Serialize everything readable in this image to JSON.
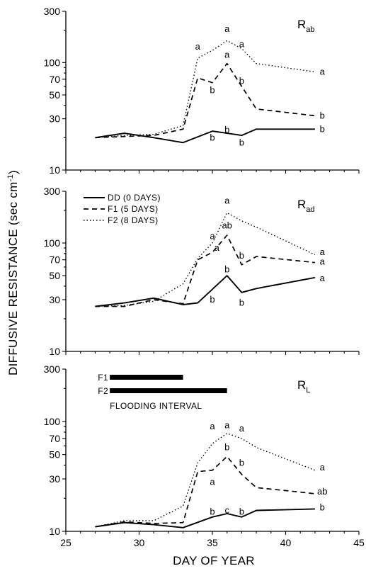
{
  "chart_data": {
    "type": "line",
    "xlabel": "DAY OF YEAR",
    "ylabel": "DIFFUSIVE RESISTANCE (sec cm",
    "ylabel_sup": "-1",
    "ylabel_close": ")",
    "xlim": [
      25,
      45
    ],
    "x_ticks": [
      25,
      30,
      35,
      40,
      45
    ],
    "yscale": "log",
    "ylim": [
      10,
      300
    ],
    "y_ticks": [
      10,
      30,
      50,
      70,
      100,
      300
    ],
    "legend": {
      "panel": 1,
      "placement": "top-left",
      "entries": [
        {
          "style": "solid",
          "label": "DD (0 DAYS)"
        },
        {
          "style": "dashed",
          "label": "F1 (5 DAYS)"
        },
        {
          "style": "dotted",
          "label": "F2 (8 DAYS)"
        }
      ]
    },
    "flooding": {
      "panel": 2,
      "title": "FLOODING INTERVAL",
      "bars": [
        {
          "label": "F1",
          "start": 28,
          "end": 33
        },
        {
          "label": "F2",
          "start": 28,
          "end": 36
        }
      ]
    },
    "panels": [
      {
        "label_main": "R",
        "label_sub": "ab",
        "series": [
          {
            "style": "solid",
            "x": [
              27,
              29,
              31,
              33,
              35,
              37,
              38,
              42
            ],
            "y": [
              20,
              22,
              20,
              18,
              23,
              21,
              24,
              24
            ]
          },
          {
            "style": "dashed",
            "x": [
              27,
              29,
              31,
              33,
              34,
              35,
              36,
              37,
              38,
              42
            ],
            "y": [
              20,
              20.5,
              21,
              24,
              72,
              65,
              98,
              60,
              37,
              32
            ]
          },
          {
            "style": "dotted",
            "x": [
              27,
              29,
              31,
              33,
              34,
              35,
              36,
              37,
              38,
              42
            ],
            "y": [
              20,
              21,
              21.5,
              26,
              110,
              130,
              160,
              135,
              98,
              82
            ]
          }
        ],
        "annotations": [
          {
            "text": "a",
            "x": 34,
            "y": 140
          },
          {
            "text": "a",
            "x": 36,
            "y": 205
          },
          {
            "text": "a",
            "x": 37,
            "y": 148
          },
          {
            "text": "a",
            "x": 36,
            "y": 118
          },
          {
            "text": "a",
            "x": 42.5,
            "y": 82
          },
          {
            "text": "b",
            "x": 35,
            "y": 55
          },
          {
            "text": "b",
            "x": 37,
            "y": 67
          },
          {
            "text": "b",
            "x": 42.5,
            "y": 32
          },
          {
            "text": "b",
            "x": 35,
            "y": 20
          },
          {
            "text": "b",
            "x": 36,
            "y": 23.5
          },
          {
            "text": "b",
            "x": 37,
            "y": 18
          },
          {
            "text": "b",
            "x": 42.5,
            "y": 24
          }
        ]
      },
      {
        "label_main": "R",
        "label_sub": "ad",
        "series": [
          {
            "style": "solid",
            "x": [
              27,
              29,
              31,
              33,
              34,
              36,
              37,
              38,
              42
            ],
            "y": [
              26,
              28,
              31,
              27,
              28,
              50,
              35,
              38,
              48
            ]
          },
          {
            "style": "dashed",
            "x": [
              27,
              29,
              31,
              33,
              34,
              35,
              36,
              37,
              38,
              42
            ],
            "y": [
              26,
              26,
              30,
              27.5,
              70,
              82,
              118,
              63,
              75,
              66
            ]
          },
          {
            "style": "dotted",
            "x": [
              27,
              29,
              31,
              33,
              34,
              35,
              36,
              37,
              38,
              42
            ],
            "y": [
              26,
              26.5,
              29,
              42,
              72,
              100,
              190,
              160,
              140,
              78
            ]
          }
        ],
        "annotations": [
          {
            "text": "a",
            "x": 36,
            "y": 245
          },
          {
            "text": "a",
            "x": 35,
            "y": 115
          },
          {
            "text": "ab",
            "x": 36,
            "y": 145
          },
          {
            "text": "a",
            "x": 35.3,
            "y": 90
          },
          {
            "text": "a",
            "x": 42.5,
            "y": 82
          },
          {
            "text": "a",
            "x": 42.5,
            "y": 67
          },
          {
            "text": "a",
            "x": 42.5,
            "y": 47
          },
          {
            "text": "b",
            "x": 37,
            "y": 76
          },
          {
            "text": "b",
            "x": 36,
            "y": 57
          },
          {
            "text": "b",
            "x": 35,
            "y": 30
          },
          {
            "text": "b",
            "x": 37,
            "y": 28
          }
        ]
      },
      {
        "label_main": "R",
        "label_sub": "L",
        "series": [
          {
            "style": "solid",
            "x": [
              27,
              29,
              31,
              33,
              35,
              36,
              37,
              38,
              42
            ],
            "y": [
              11,
              12,
              11.5,
              10.8,
              13.5,
              14.5,
              13.5,
              15.5,
              16
            ]
          },
          {
            "style": "dashed",
            "x": [
              27,
              29,
              31,
              33,
              34,
              35,
              36,
              37,
              38,
              40,
              42
            ],
            "y": [
              11,
              12.2,
              11.8,
              12,
              35,
              36,
              48,
              33,
              25,
              23.5,
              22
            ]
          },
          {
            "style": "dotted",
            "x": [
              27,
              29,
              31,
              33,
              34,
              35,
              36,
              37,
              38,
              42
            ],
            "y": [
              11,
              12.5,
              12.5,
              17,
              42,
              63,
              78,
              70,
              58,
              36
            ]
          }
        ],
        "annotations": [
          {
            "text": "a",
            "x": 35,
            "y": 90
          },
          {
            "text": "a",
            "x": 36,
            "y": 92
          },
          {
            "text": "a",
            "x": 37,
            "y": 86
          },
          {
            "text": "b",
            "x": 36,
            "y": 58
          },
          {
            "text": "a",
            "x": 35,
            "y": 28
          },
          {
            "text": "b",
            "x": 37,
            "y": 42
          },
          {
            "text": "a",
            "x": 42.5,
            "y": 38
          },
          {
            "text": "ab",
            "x": 42.5,
            "y": 23
          },
          {
            "text": "b",
            "x": 35,
            "y": 15
          },
          {
            "text": "c",
            "x": 36,
            "y": 15.5
          },
          {
            "text": "b",
            "x": 37,
            "y": 15
          },
          {
            "text": "b",
            "x": 42.5,
            "y": 16.5
          }
        ]
      }
    ]
  }
}
